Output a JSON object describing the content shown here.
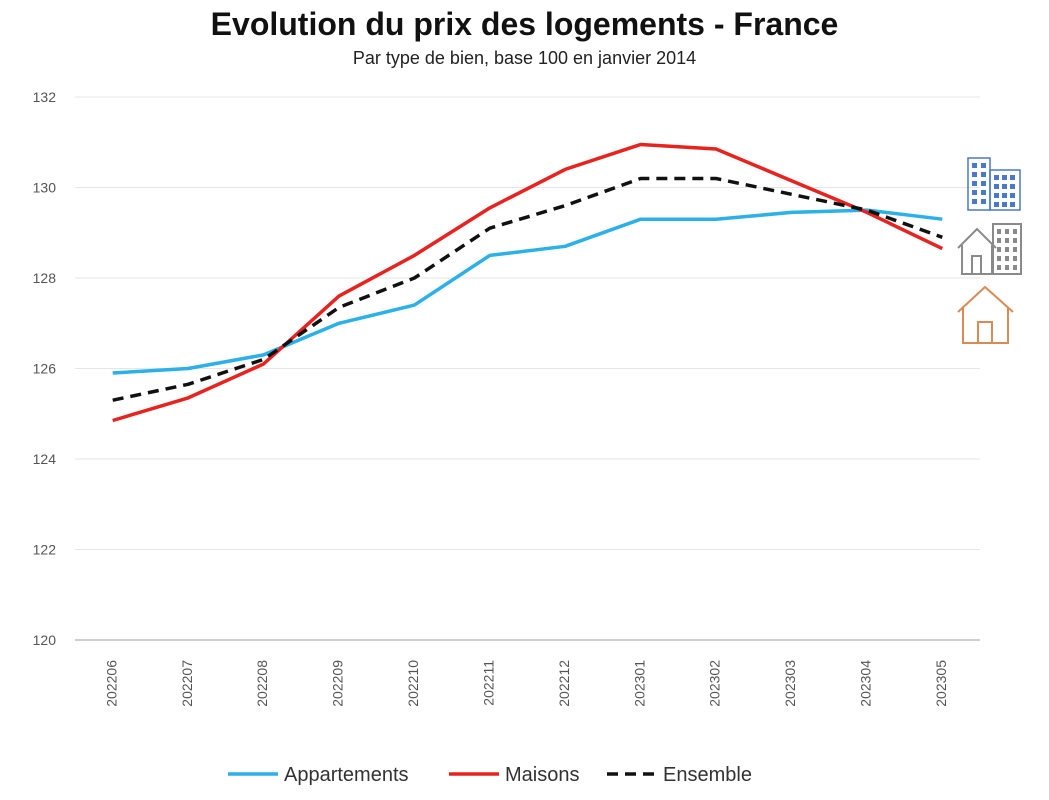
{
  "chart_data": {
    "type": "line",
    "title": "Evolution du prix des logements - France",
    "subtitle": "Par type de bien, base 100 en janvier 2014",
    "xlabel": "",
    "ylabel": "",
    "categories": [
      "202206",
      "202207",
      "202208",
      "202209",
      "202210",
      "202211",
      "202212",
      "202301",
      "202302",
      "202303",
      "202304",
      "202305"
    ],
    "ylim": [
      120,
      132
    ],
    "yticks": [
      120,
      122,
      124,
      126,
      128,
      130,
      132
    ],
    "grid": true,
    "legend_position": "bottom",
    "series": [
      {
        "name": "Appartements",
        "color": "#2bb0e8",
        "dash": false,
        "values": [
          125.9,
          126.0,
          126.3,
          127.0,
          127.4,
          128.5,
          128.7,
          129.3,
          129.3,
          129.45,
          129.5,
          129.3
        ]
      },
      {
        "name": "Maisons",
        "color": "#e8231f",
        "dash": false,
        "values": [
          124.85,
          125.35,
          126.1,
          127.6,
          128.5,
          129.55,
          130.4,
          130.95,
          130.85,
          130.15,
          129.45,
          128.65
        ]
      },
      {
        "name": "Ensemble",
        "color": "#111111",
        "dash": true,
        "values": [
          125.3,
          125.65,
          126.2,
          127.35,
          128.0,
          129.1,
          129.6,
          130.2,
          130.2,
          129.85,
          129.5,
          128.9
        ]
      }
    ],
    "icons": [
      {
        "name": "apartment-building-icon",
        "color": "#4a79c9"
      },
      {
        "name": "house-and-building-icon",
        "color": "#8a8a8a"
      },
      {
        "name": "house-icon",
        "color": "#d98a55"
      }
    ]
  }
}
